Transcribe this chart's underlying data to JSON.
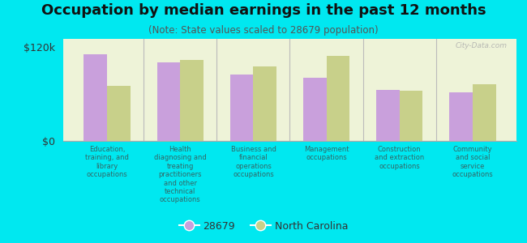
{
  "title": "Occupation by median earnings in the past 12 months",
  "subtitle": "(Note: State values scaled to 28679 population)",
  "categories": [
    "Education,\ntraining, and\nlibrary\noccupations",
    "Health\ndiagnosing and\ntreating\npractitioners\nand other\ntechnical\noccupations",
    "Business and\nfinancial\noperations\noccupations",
    "Management\noccupations",
    "Construction\nand extraction\noccupations",
    "Community\nand social\nservice\noccupations"
  ],
  "values_28679": [
    110000,
    100000,
    85000,
    80000,
    65000,
    62000
  ],
  "values_nc": [
    70000,
    103000,
    95000,
    108000,
    64000,
    72000
  ],
  "ylim": [
    0,
    130000
  ],
  "yticks": [
    0,
    120000
  ],
  "ytick_labels": [
    "$0",
    "$120k"
  ],
  "color_28679": "#c9a0dc",
  "color_nc": "#c8d08a",
  "background_color": "#00e8f0",
  "plot_bg_color": "#eef3d8",
  "legend_label_28679": "28679",
  "legend_label_nc": "North Carolina",
  "watermark": "City-Data.com",
  "title_fontsize": 13,
  "subtitle_fontsize": 8.5,
  "tick_label_fontsize": 7,
  "axis_label_fontsize": 6.5,
  "label_color": "#336666",
  "title_color": "#111111"
}
